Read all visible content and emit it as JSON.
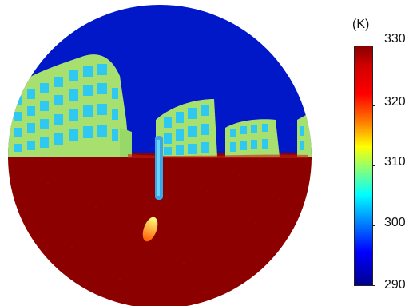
{
  "image": {
    "description_tags": [
      "fisheye-thermal-image",
      "buildings",
      "ground",
      "sky"
    ],
    "palette": {
      "sky": "#0018c8",
      "ground": "#8c0000",
      "facade": "#a8e070",
      "windows": "#2ec8f0",
      "hot_spot": "#ff6a00"
    }
  },
  "colorbar": {
    "unit": "(K)",
    "ticks": [
      "330",
      "320",
      "310",
      "300",
      "290"
    ]
  }
}
